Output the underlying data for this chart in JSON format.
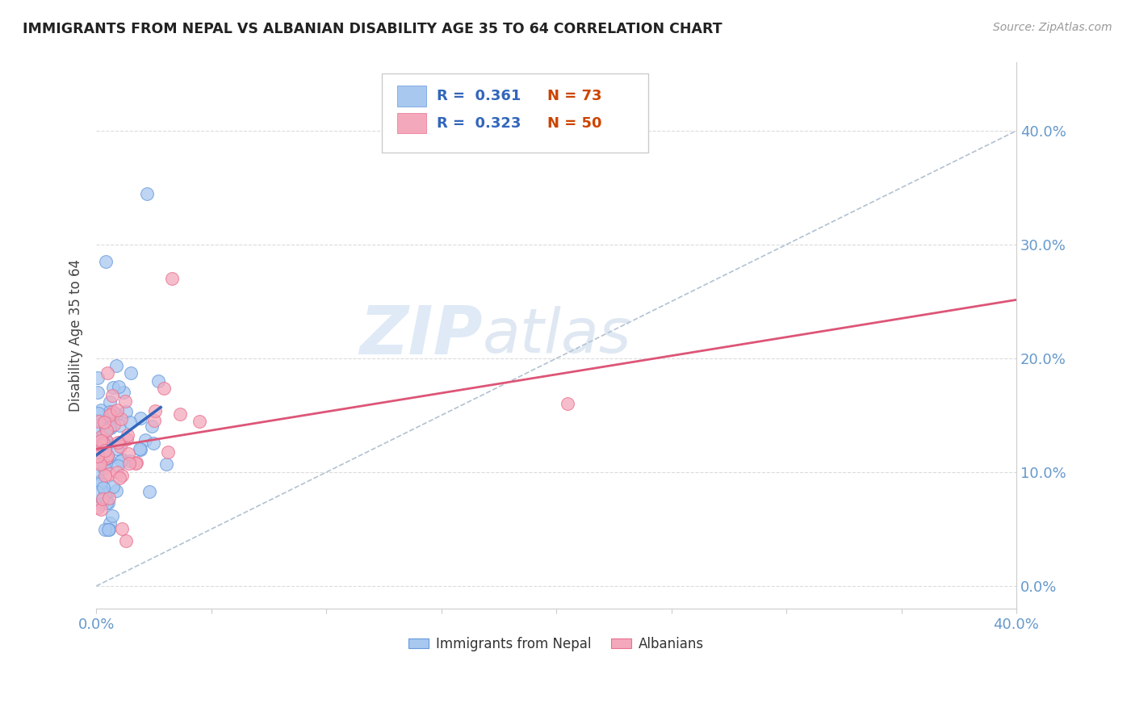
{
  "title": "IMMIGRANTS FROM NEPAL VS ALBANIAN DISABILITY AGE 35 TO 64 CORRELATION CHART",
  "source": "Source: ZipAtlas.com",
  "ylabel": "Disability Age 35 to 64",
  "xlim": [
    0.0,
    0.4
  ],
  "ylim": [
    -0.02,
    0.46
  ],
  "nepal_R": 0.361,
  "nepal_N": 73,
  "albanian_R": 0.323,
  "albanian_N": 50,
  "nepal_color": "#a8c8f0",
  "albanian_color": "#f4a8bc",
  "nepal_edge_color": "#6699dd",
  "albanian_edge_color": "#e87090",
  "nepal_line_color": "#3366bb",
  "albanian_line_color": "#dd5577",
  "diag_color": "#aabbcc",
  "grid_color": "#cccccc",
  "background_color": "#ffffff",
  "tick_color": "#6699cc",
  "label_color": "#444444",
  "title_color": "#222222",
  "source_color": "#999999",
  "legend_border_color": "#cccccc",
  "watermark_zip_color": "#c5daf0",
  "watermark_atlas_color": "#b8cce4"
}
